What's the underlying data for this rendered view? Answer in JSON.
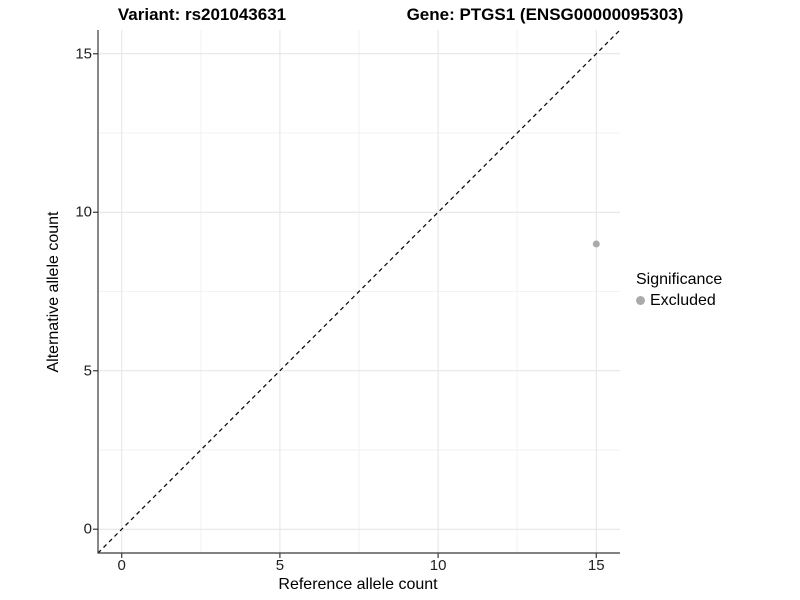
{
  "figure": {
    "title_left": "Variant: rs201043631",
    "title_right": "Gene: PTGS1 (ENSG00000095303)"
  },
  "axes": {
    "x_title": "Reference allele count",
    "y_title": "Alternative allele count"
  },
  "legend": {
    "title": "Significance",
    "items": [
      {
        "label": "Excluded",
        "color": "#aaaaaa"
      }
    ]
  },
  "chart_data": {
    "type": "scatter",
    "title": "Variant: rs201043631    Gene: PTGS1 (ENSG00000095303)",
    "xlabel": "Reference allele count",
    "ylabel": "Alternative allele count",
    "xlim": [
      -0.75,
      15.75
    ],
    "ylim": [
      -0.75,
      15.75
    ],
    "x_ticks": [
      0,
      5,
      10,
      15
    ],
    "y_ticks": [
      0,
      5,
      10,
      15
    ],
    "x_minor_ticks": [
      2.5,
      7.5,
      12.5
    ],
    "y_minor_ticks": [
      2.5,
      7.5,
      12.5
    ],
    "grid": true,
    "legend_position": "right",
    "series": [
      {
        "name": "Excluded",
        "color": "#aaaaaa",
        "points": [
          {
            "x": 15,
            "y": 9
          }
        ]
      }
    ],
    "reference_line": {
      "type": "identity",
      "style": "dashed",
      "color": "#111111",
      "from": [
        -0.75,
        -0.75
      ],
      "to": [
        15.75,
        15.75
      ]
    }
  }
}
